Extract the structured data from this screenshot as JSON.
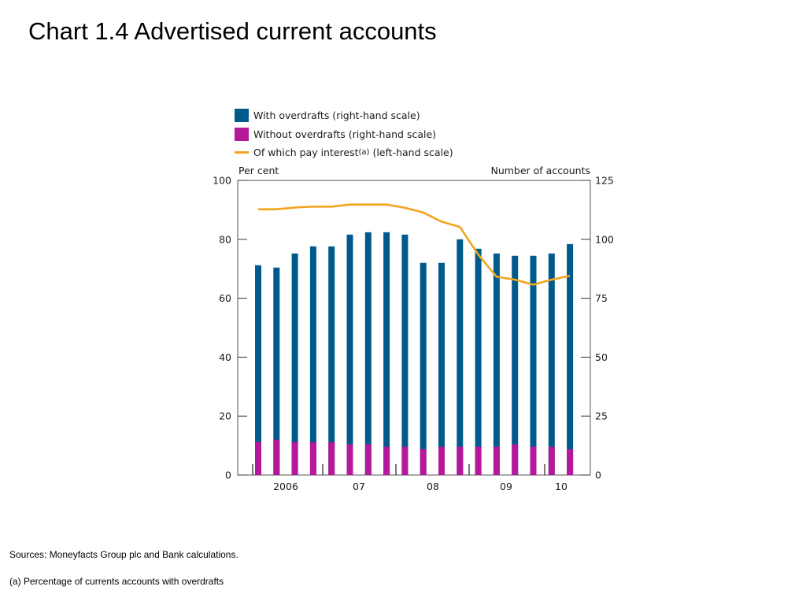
{
  "title": "Chart 1.4  Advertised current accounts",
  "legend": {
    "with": "With overdrafts (right-hand scale)",
    "without": "Without overdrafts (right-hand scale)",
    "interest_main": "Of which pay interest",
    "interest_sup": "(a)",
    "interest_tail": " (left-hand scale)"
  },
  "axis": {
    "left_label": "Per cent",
    "right_label": "Number of accounts"
  },
  "footnotes": {
    "sources": "Sources:  Moneyfacts Group plc and Bank calculations.",
    "note": "(a)  Percentage of currents accounts with overdrafts"
  },
  "colors": {
    "with_overdrafts": "#005a8c",
    "without_overdrafts": "#b5199a",
    "pay_interest": "#f2a51f"
  },
  "chart_data": {
    "type": "bar",
    "left_axis": {
      "ylim": [
        0,
        100
      ],
      "ticks": [
        0,
        20,
        40,
        60,
        80,
        100
      ]
    },
    "right_axis": {
      "ylim": [
        0,
        125
      ],
      "ticks": [
        0,
        25,
        50,
        75,
        100,
        125
      ]
    },
    "x_tick_labels": [
      "2006",
      "07",
      "08",
      "09",
      "10"
    ],
    "series": [
      {
        "name": "With overdrafts (right-hand scale)",
        "axis": "right",
        "values": [
          89,
          88,
          94,
          97,
          97,
          102,
          103,
          103,
          102,
          90,
          90,
          100,
          96,
          94,
          93,
          93,
          94,
          98
        ]
      },
      {
        "name": "Without overdrafts (right-hand scale)",
        "axis": "right",
        "values": [
          14,
          15,
          14,
          14,
          14,
          13,
          13,
          12,
          12,
          11,
          12,
          12,
          12,
          12,
          13,
          12,
          12,
          11
        ]
      },
      {
        "name": "Of which pay interest (left-hand scale)",
        "axis": "left",
        "values": [
          90.2,
          90.2,
          90.8,
          91.1,
          91.1,
          91.8,
          91.8,
          91.8,
          90.7,
          89.1,
          86.0,
          84.2,
          74.8,
          67.3,
          66.3,
          64.6,
          66.3,
          67.6
        ]
      }
    ]
  }
}
